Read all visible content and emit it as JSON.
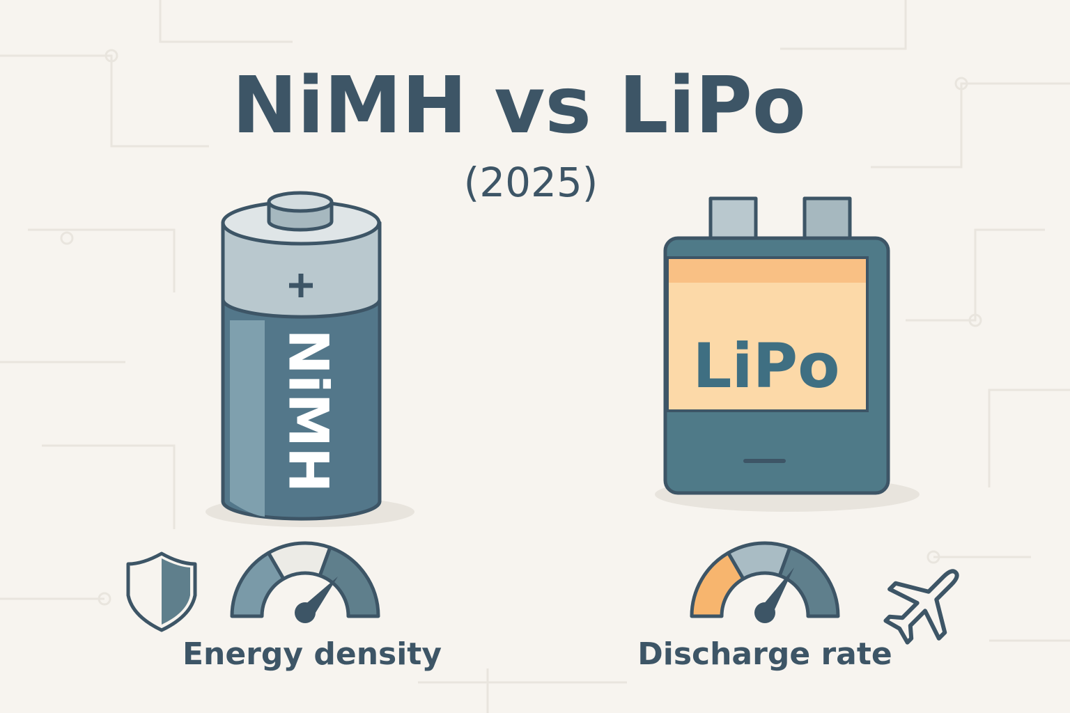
{
  "header": {
    "title": "NiMH vs LiPo",
    "subtitle": "(2025)"
  },
  "batteries": [
    {
      "label": "NiMH",
      "caption": "Energy density"
    },
    {
      "label": "LiPo",
      "caption": "Discharge rate"
    }
  ]
}
